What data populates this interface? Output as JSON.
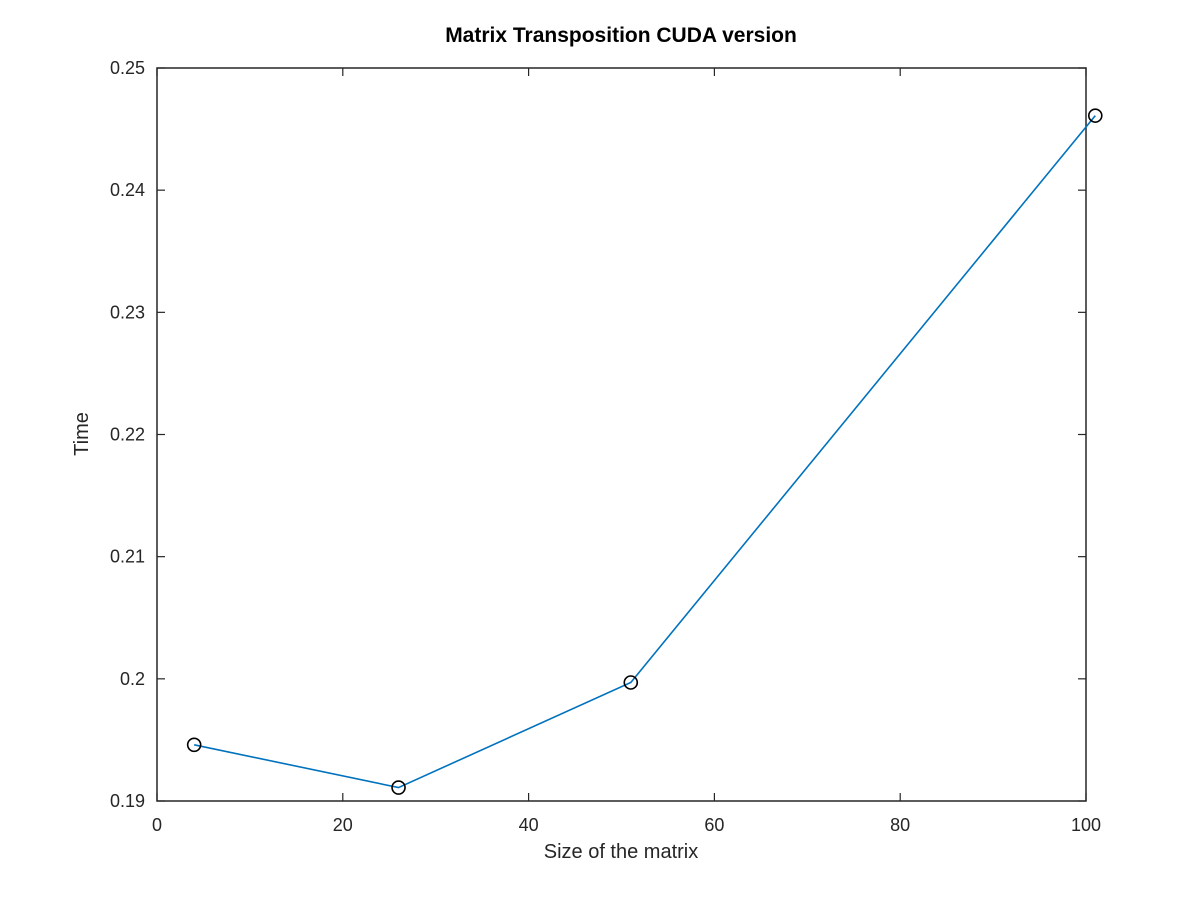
{
  "chart_data": {
    "type": "line",
    "title": "Matrix Transposition CUDA version",
    "xlabel": "Size of the matrix",
    "ylabel": "Time",
    "xlim": [
      0,
      100
    ],
    "ylim": [
      0.19,
      0.25
    ],
    "xticks": [
      0,
      20,
      40,
      60,
      80,
      100
    ],
    "xtick_labels": [
      "0",
      "20",
      "40",
      "60",
      "80",
      "100"
    ],
    "yticks": [
      0.19,
      0.2,
      0.21,
      0.22,
      0.23,
      0.24,
      0.25
    ],
    "ytick_labels": [
      "0.19",
      "0.2",
      "0.21",
      "0.22",
      "0.23",
      "0.24",
      "0.25"
    ],
    "grid": false,
    "series": [
      {
        "x": [
          4,
          26,
          51,
          101
        ],
        "y": [
          0.1946,
          0.1911,
          0.1997,
          0.2461
        ],
        "line_color": "#0072bd",
        "marker": "circle",
        "marker_color": "#000000"
      }
    ]
  }
}
